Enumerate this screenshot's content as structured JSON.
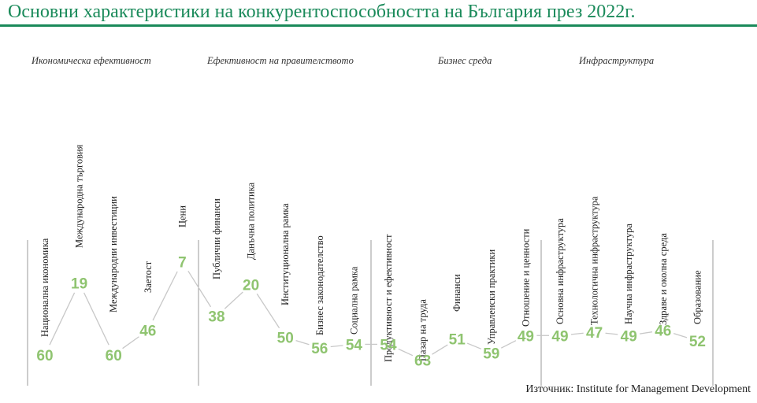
{
  "header": {
    "title": "Основни характеристики на конкурентоспособността на България през 2022г."
  },
  "source": "Източник: Institute for Management Development",
  "colors": {
    "title": "#1a8a5a",
    "line": "#c8c8c8",
    "values": "#8fc470",
    "dividers": "#999999"
  },
  "chart_data": {
    "type": "line",
    "groups": [
      {
        "name": "Икономическа ефективност",
        "categories": [
          "Национална икономика",
          "Международна търговия",
          "Международни инвестиции",
          "Заетост",
          "Цени"
        ]
      },
      {
        "name": "Ефективност на правителството",
        "categories": [
          "Публични финанси",
          "Данъчна политика",
          "Институционална рамка",
          "Бизнес законодателство",
          "Социална рамка"
        ]
      },
      {
        "name": "Бизнес среда",
        "categories": [
          "Продуктивност и ефективност",
          "Пазар на труда",
          "Финанси",
          "Управленски практики",
          "Отношение и ценности"
        ]
      },
      {
        "name": "Инфраструктура",
        "categories": [
          "Основна инфраструктура",
          "Технологична инфраструктура",
          "Научна инфраструктура",
          "Здраве и околна среда",
          "Образование"
        ]
      }
    ],
    "categories": [
      "Национална икономика",
      "Международна търговия",
      "Международни инвестиции",
      "Заетост",
      "Цени",
      "Публични финанси",
      "Данъчна политика",
      "Институционална рамка",
      "Бизнес законодателство",
      "Социална рамка",
      "Продуктивност и ефективност",
      "Пазар на труда",
      "Финанси",
      "Управленски практики",
      "Отношение и ценности",
      "Основна инфраструктура",
      "Технологична инфраструктура",
      "Научна инфраструктура",
      "Здраве и околна среда",
      "Образование"
    ],
    "values": [
      60,
      19,
      60,
      46,
      7,
      38,
      20,
      50,
      56,
      54,
      54,
      63,
      51,
      59,
      49,
      49,
      47,
      49,
      46,
      52
    ],
    "y_axis": {
      "inverted": true,
      "ylim": [
        5,
        65
      ]
    },
    "grid": false,
    "legend": "none"
  }
}
